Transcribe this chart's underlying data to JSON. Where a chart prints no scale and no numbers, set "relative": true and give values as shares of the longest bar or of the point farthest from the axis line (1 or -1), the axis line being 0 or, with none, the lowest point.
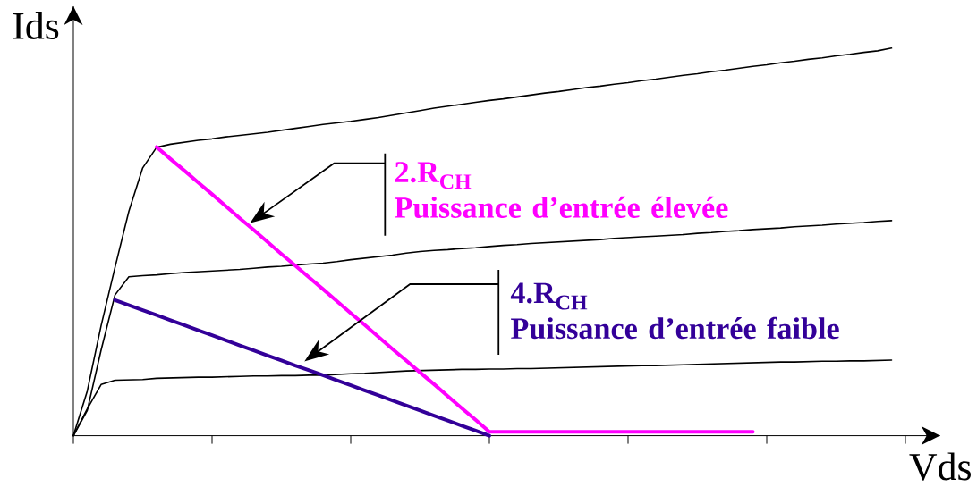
{
  "chart_data": {
    "type": "line",
    "xlabel": "Vds",
    "ylabel": "Ids",
    "relative": true,
    "categories": [
      null,
      null,
      null,
      null,
      null,
      null,
      null,
      null,
      null,
      null,
      null,
      null,
      null,
      null,
      null,
      null,
      null,
      null,
      null,
      null,
      null,
      null,
      null,
      null,
      null,
      null,
      null,
      null,
      null,
      null,
      null,
      null,
      null,
      null,
      null,
      null,
      null,
      null,
      null,
      null,
      null,
      null,
      null,
      null,
      null,
      null,
      null,
      null,
      null,
      null,
      null,
      null,
      null,
      null,
      null,
      null,
      null,
      null,
      null,
      null
    ],
    "series": [
      {
        "color": "#000000",
        "values": [
          0,
          0.115,
          0.284,
          0.434,
          0.579,
          0.691,
          0.744,
          0.752,
          0.757,
          0.762,
          0.766,
          0.771,
          0.775,
          0.779,
          0.783,
          0.788,
          0.793,
          0.798,
          0.803,
          0.807,
          0.811,
          0.816,
          0.821,
          0.827,
          0.833,
          0.839,
          0.845,
          0.85,
          0.855,
          0.86,
          0.865,
          0.869,
          0.874,
          0.879,
          0.884,
          0.888,
          0.893,
          0.898,
          0.902,
          0.907,
          0.911,
          0.916,
          0.92,
          0.925,
          0.93,
          0.934,
          0.939,
          0.943,
          0.948,
          0.953,
          0.957,
          0.962,
          0.966,
          0.971,
          0.975,
          0.98,
          0.984,
          0.989,
          0.993,
          1.0
        ]
      },
      {
        "color": "#000000",
        "values": [
          0,
          0.065,
          0.221,
          0.363,
          0.41,
          0.413,
          0.415,
          0.418,
          0.421,
          0.423,
          0.425,
          0.427,
          0.429,
          0.432,
          0.435,
          0.437,
          0.44,
          0.443,
          0.445,
          0.449,
          0.454,
          0.458,
          0.462,
          0.466,
          0.471,
          0.475,
          0.478,
          0.48,
          0.483,
          0.485,
          0.488,
          0.491,
          0.493,
          0.496,
          0.498,
          0.5,
          0.502,
          0.504,
          0.506,
          0.509,
          0.511,
          0.513,
          0.515,
          0.517,
          0.519,
          0.522,
          0.524,
          0.527,
          0.529,
          0.532,
          0.534,
          0.536,
          0.539,
          0.541,
          0.543,
          0.546,
          0.548,
          0.55,
          0.553,
          0.555
        ]
      },
      {
        "color": "#000000",
        "values": [
          0,
          0.069,
          0.132,
          0.143,
          0.144,
          0.145,
          0.148,
          0.149,
          0.15,
          0.151,
          0.151,
          0.152,
          0.153,
          0.154,
          0.154,
          0.155,
          0.155,
          0.156,
          0.156,
          0.158,
          0.16,
          0.161,
          0.163,
          0.165,
          0.167,
          0.168,
          0.169,
          0.17,
          0.171,
          0.171,
          0.172,
          0.172,
          0.173,
          0.173,
          0.174,
          0.175,
          0.176,
          0.177,
          0.178,
          0.179,
          0.18,
          0.181,
          0.181,
          0.182,
          0.183,
          0.184,
          0.185,
          0.186,
          0.187,
          0.188,
          0.189,
          0.19,
          0.19,
          0.191,
          0.192,
          0.192,
          0.193,
          0.193,
          0.194,
          0.195
        ]
      },
      {
        "name": "2.R$_{CH}$\nPuissance d’entrée élevée",
        "color": "#ff00ff",
        "values": [
          null,
          null,
          null,
          null,
          null,
          null,
          0.745,
          0.714,
          0.684,
          0.653,
          0.623,
          0.592,
          0.561,
          0.531,
          0.5,
          0.469,
          0.439,
          0.408,
          0.378,
          0.347,
          0.316,
          0.286,
          0.255,
          0.224,
          0.194,
          0.163,
          0.133,
          0.102,
          0.071,
          0.041,
          0.01,
          0.01,
          0.01,
          0.01,
          0.01,
          0.01,
          0.01,
          0.01,
          0.01,
          0.01,
          0.01,
          0.01,
          0.01,
          0.01,
          0.01,
          0.01,
          0.01,
          0.01,
          0.01,
          0.01,
          null,
          null,
          null,
          null,
          null,
          null,
          null,
          null,
          null,
          null
        ]
      },
      {
        "name": "4.R$_{CH}$\nPuissance d’entrée faible",
        "color": "#330099",
        "values": [
          null,
          null,
          null,
          0.35,
          0.337,
          0.324,
          0.311,
          0.298,
          0.285,
          0.272,
          0.259,
          0.246,
          0.233,
          0.22,
          0.207,
          0.194,
          0.181,
          0.169,
          0.156,
          0.143,
          0.13,
          0.117,
          0.104,
          0.091,
          0.078,
          0.065,
          0.052,
          0.039,
          0.026,
          0.013,
          0,
          null,
          null,
          null,
          null,
          null,
          null,
          null,
          null,
          null,
          null,
          null,
          null,
          null,
          null,
          null,
          null,
          null,
          null,
          null,
          null,
          null,
          null,
          null,
          null,
          null,
          null,
          null,
          null,
          null
        ]
      }
    ]
  }
}
